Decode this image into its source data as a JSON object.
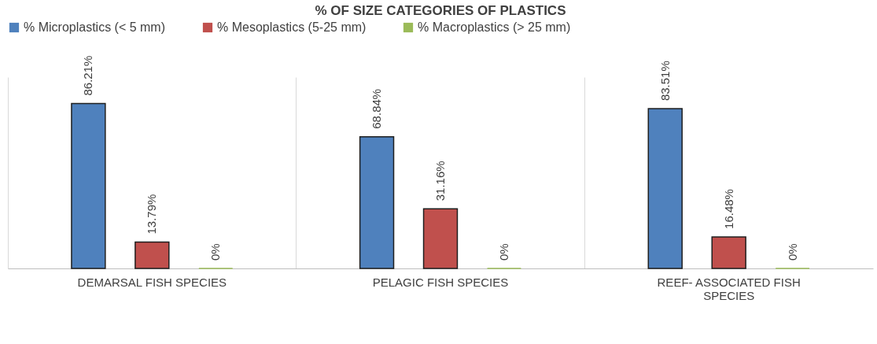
{
  "chart_data": {
    "type": "bar",
    "title": "% OF SIZE CATEGORIES OF PLASTICS",
    "categories": [
      "DEMARSAL FISH SPECIES",
      "PELAGIC FISH SPECIES",
      "REEF- ASSOCIATED FISH SPECIES"
    ],
    "series": [
      {
        "name": "% Microplastics (< 5 mm)",
        "color": "#4f81bd",
        "values": [
          86.21,
          68.84,
          83.51
        ],
        "value_labels": [
          "86.21%",
          "68.84%",
          "83.51%"
        ]
      },
      {
        "name": "% Mesoplastics (5-25 mm)",
        "color": "#c0504d",
        "values": [
          13.79,
          31.16,
          16.48
        ],
        "value_labels": [
          "13.79%",
          "31.16%",
          "16.48%"
        ]
      },
      {
        "name": "% Macroplastics (> 25 mm)",
        "color": "#9bbb59",
        "values": [
          0,
          0,
          0
        ],
        "value_labels": [
          "0%",
          "0%",
          "0%"
        ]
      }
    ],
    "ylim": [
      0,
      100
    ],
    "legend": "top",
    "grid": "x"
  }
}
